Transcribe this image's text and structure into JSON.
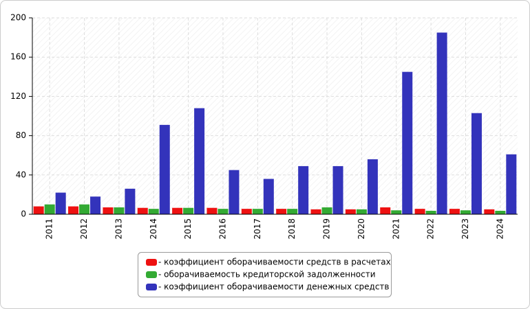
{
  "chart_data": {
    "type": "bar",
    "categories": [
      "2011",
      "2012",
      "2013",
      "2014",
      "2015",
      "2016",
      "2017",
      "2018",
      "2019",
      "2020",
      "2021",
      "2022",
      "2023",
      "2024"
    ],
    "series": [
      {
        "name": "- коэффициент оборачиваемости средств в расчетах",
        "color": "#ee1111",
        "values": [
          8,
          8,
          7,
          6.5,
          6.5,
          6.5,
          5.5,
          5.5,
          5,
          5,
          7,
          5.5,
          5.5,
          5
        ]
      },
      {
        "name": "- оборачиваемость кредиторской задолженности",
        "color": "#33aa33",
        "values": [
          10,
          10,
          7,
          5.5,
          6.5,
          5.5,
          5.5,
          5.5,
          7,
          5,
          4,
          3.5,
          4,
          3.5
        ]
      },
      {
        "name": "- коэффициент оборачиваемости денежных средств",
        "color": "#3333bb",
        "values": [
          22,
          18,
          26,
          91,
          108,
          45,
          36,
          49,
          49,
          56,
          145,
          185,
          103,
          61
        ]
      }
    ],
    "ylim": [
      0,
      200
    ],
    "yticks": [
      0,
      40,
      80,
      120,
      160,
      200
    ],
    "grid": true
  }
}
